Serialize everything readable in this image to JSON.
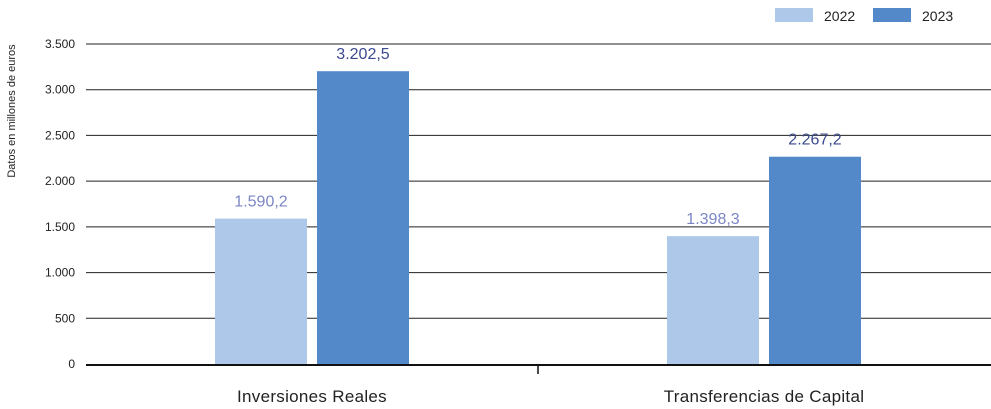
{
  "chart_data": {
    "type": "bar",
    "title": "",
    "xlabel": "",
    "ylabel": "Datos en millones de euros",
    "ylim": [
      0,
      3500
    ],
    "yticks": [
      0,
      500,
      1000,
      1500,
      2000,
      2500,
      3000,
      3500
    ],
    "ytick_labels": [
      "0",
      "500",
      "1.000",
      "1.500",
      "2.000",
      "2.500",
      "3.000",
      "3.500"
    ],
    "grid": true,
    "legend_position": "top-right",
    "categories": [
      "Inversiones Reales",
      "Transferencias de Capital"
    ],
    "series": [
      {
        "name": "2022",
        "color": "#adc8e9",
        "label_color": "#7b86c6",
        "values": [
          1590.2,
          1398.3
        ],
        "labels": [
          "1.590,2",
          "1.398,3"
        ]
      },
      {
        "name": "2023",
        "color": "#5389c9",
        "label_color": "#3b4a8f",
        "values": [
          3202.5,
          2267.2
        ],
        "labels": [
          "3.202,5",
          "2.267,2"
        ]
      }
    ]
  }
}
